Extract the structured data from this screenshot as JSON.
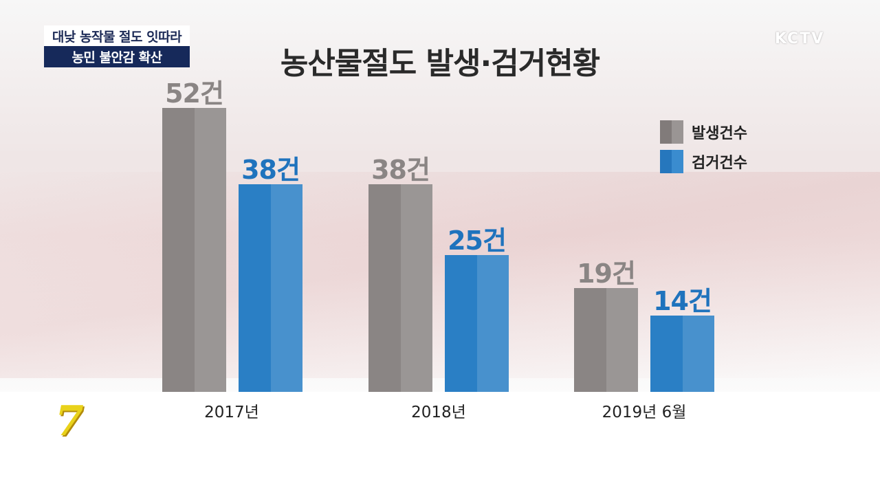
{
  "captions": {
    "line1": "대낮 농작물 절도 잇따라",
    "line2": "농민 불안감 확산"
  },
  "logo": "KCTV",
  "program_mark": "7",
  "colors": {
    "occurrence": "#8a8584",
    "arrest": "#2a7fc5",
    "caption_bg": "#16295a"
  },
  "chart_data": {
    "type": "bar",
    "title": "농산물절도 발생·검거현황",
    "categories": [
      "2017년",
      "2018년",
      "2019년 6월"
    ],
    "series": [
      {
        "name": "발생건수",
        "values": [
          52,
          38,
          19
        ],
        "labels": [
          "52건",
          "38건",
          "19건"
        ]
      },
      {
        "name": "검거건수",
        "values": [
          38,
          25,
          14
        ],
        "labels": [
          "38건",
          "25건",
          "14건"
        ]
      }
    ],
    "legend_position": "top-right",
    "ylim": [
      0,
      52
    ],
    "grid": false
  }
}
